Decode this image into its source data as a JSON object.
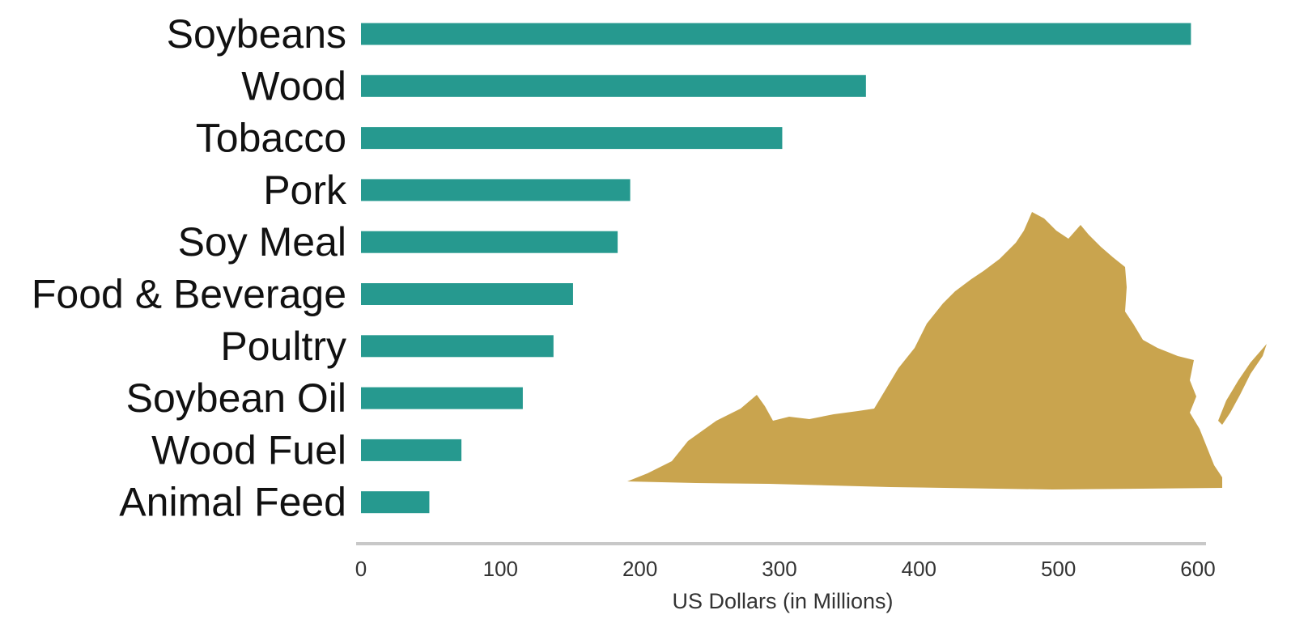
{
  "chart_data": {
    "type": "bar",
    "orientation": "horizontal",
    "title": "",
    "xlabel": "US Dollars (in Millions)",
    "ylabel": "",
    "categories": [
      "Soybeans",
      "Wood",
      "Tobacco",
      "Pork",
      "Soy Meal",
      "Food & Beverage",
      "Poultry",
      "Soybean Oil",
      "Wood Fuel",
      "Animal Feed"
    ],
    "values": [
      595,
      362,
      302,
      193,
      184,
      152,
      138,
      116,
      72,
      49
    ],
    "xlim": [
      0,
      600
    ],
    "xticks": [
      "0",
      "100",
      "200",
      "300",
      "400",
      "500",
      "600"
    ],
    "grid": false,
    "legend": "none",
    "bar_color": "#26998f",
    "axis_color": "#c8c8c8",
    "decoration": {
      "icon": "virginia-state-map-icon",
      "color": "#c9a44e"
    }
  }
}
